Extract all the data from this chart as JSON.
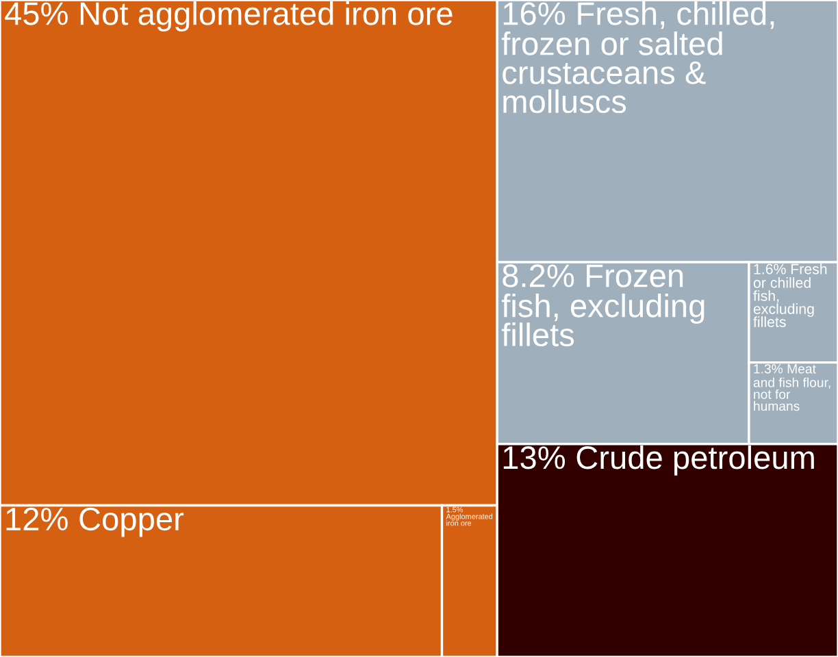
{
  "chart_data": {
    "type": "other",
    "categories": [
      "Not agglomerated iron ore",
      "Copper",
      "Agglomerated iron ore",
      "Crude petroleum",
      "Fresh, chilled, frozen or salted crustaceans & molluscs",
      "Frozen fish, excluding fillets",
      "Fresh or chilled fish, excluding fillets",
      "Meat and fish flour, not for humans"
    ],
    "values": [
      45,
      12,
      1.5,
      13,
      16,
      8.2,
      1.6,
      1.3
    ],
    "value_labels": [
      "45%",
      "12%",
      "1.5%",
      "13%",
      "16%",
      "8.2%",
      "1.6%",
      "1.3%"
    ],
    "colors": [
      "#d66012",
      "#d66012",
      "#d66012",
      "#330000",
      "#9fb0bc",
      "#9fb0bc",
      "#9fb0bc",
      "#9fb0bc"
    ]
  }
}
